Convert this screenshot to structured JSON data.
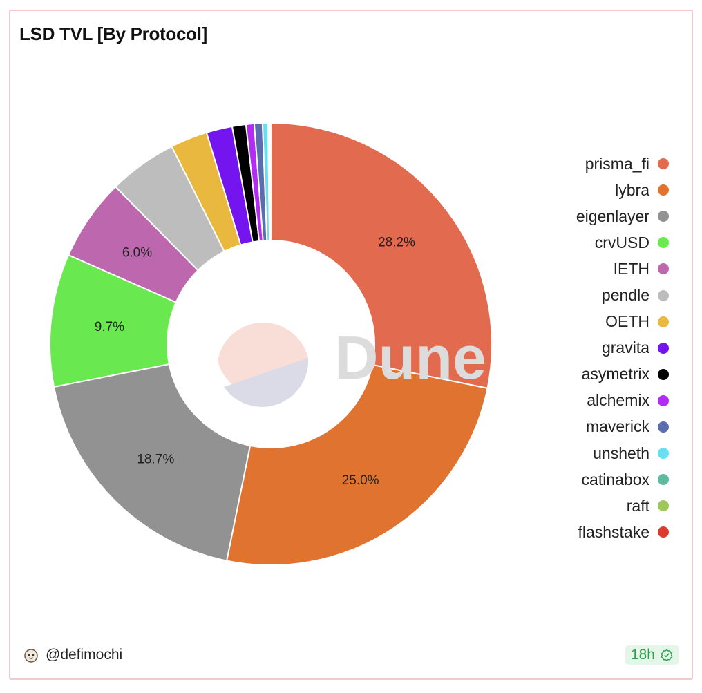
{
  "chart_data": {
    "type": "pie",
    "variant": "donut",
    "title": "LSD TVL [By Protocol]",
    "labels": [
      "prisma_fi",
      "lybra",
      "eigenlayer",
      "crvUSD",
      "IETH",
      "pendle",
      "OETH",
      "gravita",
      "asymetrix",
      "alchemix",
      "maverick",
      "unsheth",
      "catinabox",
      "raft",
      "flashstake"
    ],
    "values": [
      28.2,
      25.0,
      18.7,
      9.7,
      6.0,
      5.0,
      2.7,
      1.9,
      1.0,
      0.6,
      0.6,
      0.4,
      0.1,
      0.05,
      0.05
    ],
    "colors": [
      "#e26a4f",
      "#e0732f",
      "#929292",
      "#6ae84f",
      "#bd67ae",
      "#bdbdbd",
      "#e8b93e",
      "#7414ef",
      "#000000",
      "#b22cf6",
      "#5b6dae",
      "#66dfee",
      "#5fb99d",
      "#9fc65b",
      "#dd3a2e"
    ],
    "data_labels": {
      "prisma_fi": "28.2%",
      "lybra": "25.0%",
      "eigenlayer": "18.7%",
      "crvUSD": "9.7%",
      "IETH": "6.0%"
    },
    "legend_position": "right"
  },
  "watermark": "Dune",
  "footer": {
    "author": "@defimochi",
    "age": "18h"
  }
}
